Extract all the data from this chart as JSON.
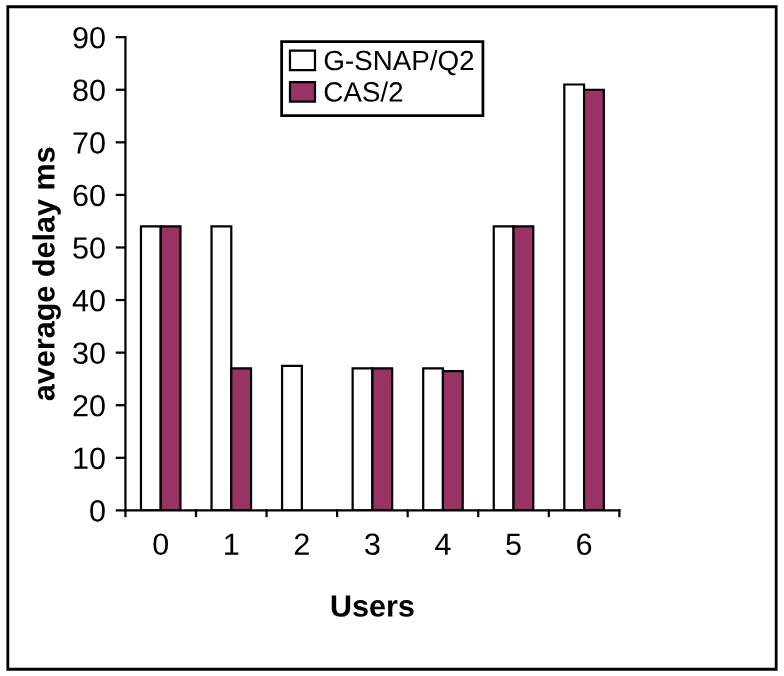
{
  "chart_data": {
    "type": "bar",
    "xlabel": "Users",
    "ylabel": "average delay ms",
    "categories": [
      "0",
      "1",
      "2",
      "3",
      "4",
      "5",
      "6"
    ],
    "series": [
      {
        "name": "G-SNAP/Q2",
        "color": "#ffffff",
        "values": [
          54,
          54,
          27.5,
          27,
          27,
          54,
          81
        ]
      },
      {
        "name": "CAS/2",
        "color": "#993366",
        "values": [
          54,
          27,
          null,
          27,
          26.5,
          54,
          80
        ]
      }
    ],
    "ylim": [
      0,
      90
    ],
    "yticks": [
      0,
      10,
      20,
      30,
      40,
      50,
      60,
      70,
      80,
      90
    ],
    "grid": false,
    "legend": "top"
  }
}
